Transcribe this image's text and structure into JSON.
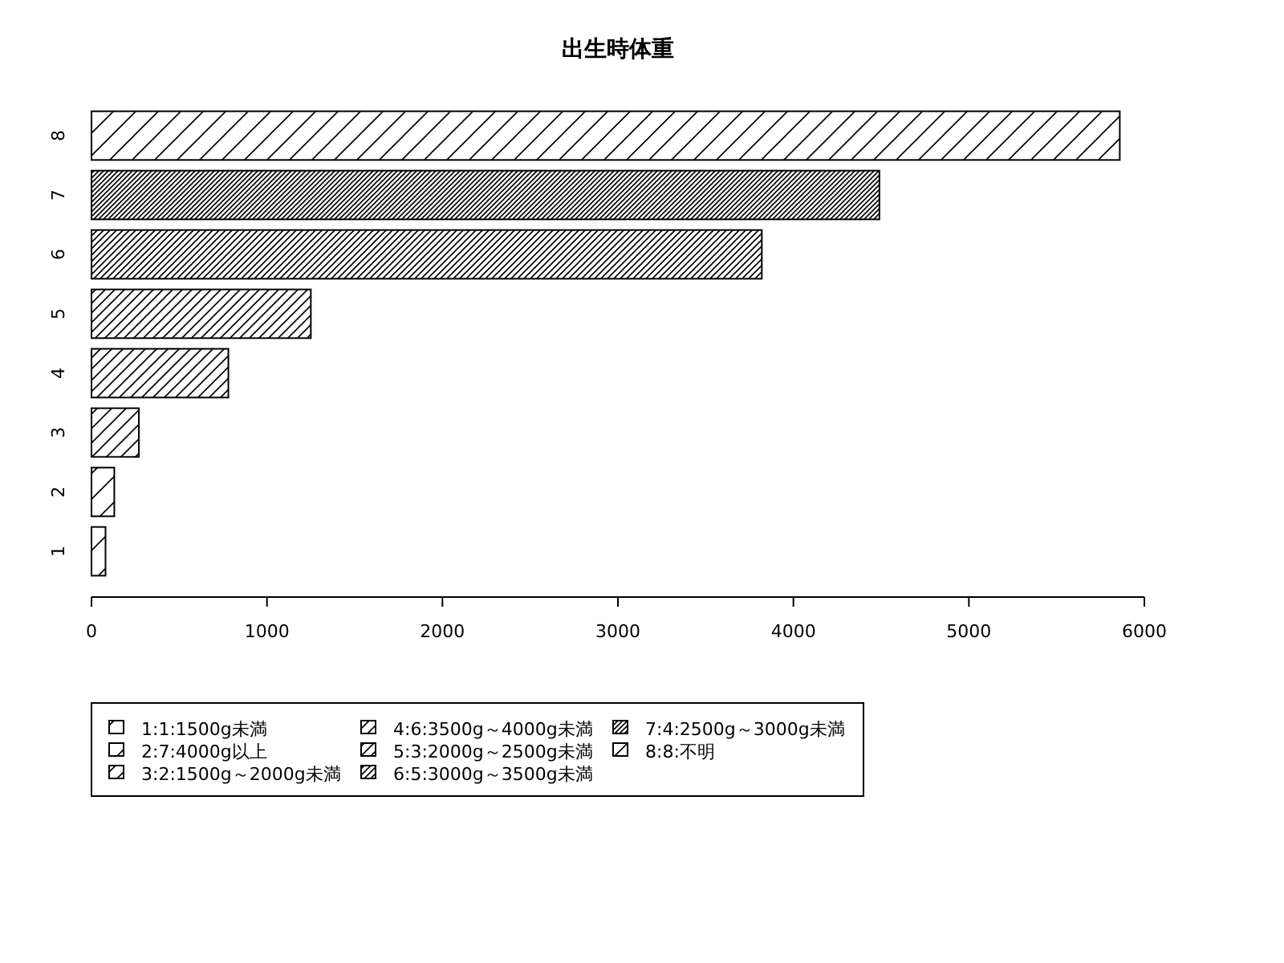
{
  "chart_data": {
    "type": "bar",
    "orientation": "horizontal",
    "title": "出生時体重",
    "categories": [
      "8",
      "7",
      "6",
      "5",
      "4",
      "3",
      "2",
      "1"
    ],
    "series": [
      {
        "name": "1:1:1500g未満",
        "color": "#000000",
        "values": [
          null,
          null,
          null,
          null,
          null,
          null,
          null,
          80
        ]
      },
      {
        "name": "2:7:4000g以上",
        "color": "#000000",
        "values": [
          null,
          null,
          null,
          null,
          null,
          null,
          130,
          null
        ]
      },
      {
        "name": "3:2:1500g～2000g未満",
        "color": "#000000",
        "values": [
          null,
          null,
          null,
          null,
          null,
          270,
          null,
          null
        ]
      },
      {
        "name": "4:6:3500g～4000g未満",
        "color": "#000000",
        "values": [
          null,
          null,
          null,
          null,
          780,
          null,
          null,
          null
        ]
      },
      {
        "name": "5:3:2000g～2500g未満",
        "color": "#000000",
        "values": [
          null,
          null,
          null,
          1250,
          null,
          null,
          null,
          null
        ]
      },
      {
        "name": "6:5:3000g～3500g未満",
        "color": "#000000",
        "values": [
          null,
          null,
          3820,
          null,
          null,
          null,
          null,
          null
        ]
      },
      {
        "name": "7:4:2500g～3000g未満",
        "color": "#000000",
        "values": [
          null,
          4490,
          null,
          null,
          null,
          null,
          null,
          null
        ]
      },
      {
        "name": "8:8:不明",
        "color": "#000000",
        "values": [
          5860,
          null,
          null,
          null,
          null,
          null,
          null,
          null
        ]
      }
    ],
    "xlim": [
      0,
      6000
    ],
    "xticks": [
      0,
      1000,
      2000,
      3000,
      4000,
      5000,
      6000
    ],
    "legend": "bottom"
  }
}
